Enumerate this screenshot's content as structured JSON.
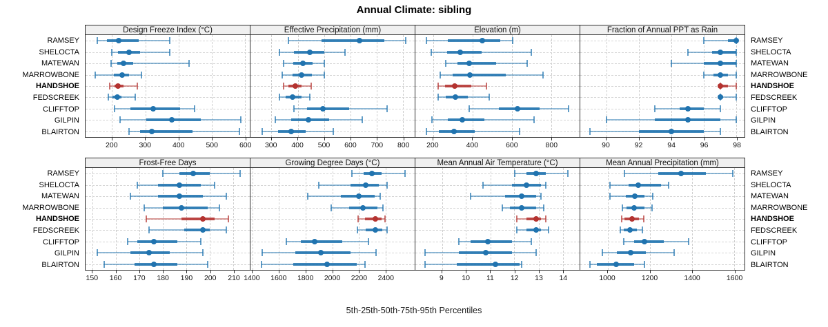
{
  "title": "Annual Climate: sibling",
  "footer": "5th-25th-50th-75th-95th Percentiles",
  "colors": {
    "series_blue": "#2073af",
    "highlight_red": "#b43330",
    "grid": "#cdcdcd",
    "strip_bg": "#f0f0f0",
    "border": "#2b2b2b"
  },
  "chart_data": {
    "type": "dot-interval percentile plot (lattice, 2x4 panels)",
    "percentile_labels": [
      "5th",
      "25th",
      "50th",
      "75th",
      "95th"
    ],
    "legend_note": "thin line = 5th-95th, thick bar = 25th-75th, dot = median",
    "rows": [
      "RAMSEY",
      "SHELOCTA",
      "MATEWAN",
      "MARROWBONE",
      "HANDSHOE",
      "FEDSCREEK",
      "CLIFFTOP",
      "GILPIN",
      "BLAIRTON"
    ],
    "highlight_row": "HANDSHOE",
    "panels": [
      {
        "title": "Design Freeze Index (°C)",
        "ticks": [
          200,
          300,
          400,
          500,
          600
        ],
        "xlim": [
          120,
          615
        ],
        "values": [
          [
            155,
            185,
            220,
            280,
            373
          ],
          [
            200,
            218,
            250,
            285,
            373
          ],
          [
            197,
            215,
            235,
            263,
            433
          ],
          [
            150,
            205,
            230,
            252,
            288
          ],
          [
            193,
            207,
            218,
            235,
            277
          ],
          [
            188,
            202,
            215,
            228,
            270
          ],
          [
            207,
            256,
            323,
            404,
            449
          ],
          [
            224,
            303,
            380,
            468,
            588
          ],
          [
            251,
            284,
            320,
            443,
            583
          ]
        ]
      },
      {
        "title": "Effective Precipitation (mm)",
        "ticks": [
          300,
          400,
          500,
          600,
          700,
          800
        ],
        "xlim": [
          220,
          845
        ],
        "values": [
          [
            365,
            490,
            635,
            730,
            810
          ],
          [
            330,
            385,
            445,
            500,
            580
          ],
          [
            345,
            382,
            420,
            456,
            502
          ],
          [
            340,
            380,
            415,
            455,
            500
          ],
          [
            345,
            365,
            390,
            415,
            450
          ],
          [
            330,
            355,
            380,
            415,
            445
          ],
          [
            385,
            435,
            495,
            595,
            740
          ],
          [
            315,
            375,
            440,
            520,
            645
          ],
          [
            265,
            325,
            375,
            430,
            535
          ]
        ]
      },
      {
        "title": "Elevation (m)",
        "ticks": [
          200,
          400,
          600,
          800
        ],
        "xlim": [
          110,
          945
        ],
        "values": [
          [
            165,
            275,
            450,
            540,
            605
          ],
          [
            190,
            272,
            338,
            448,
            700
          ],
          [
            265,
            325,
            385,
            520,
            680
          ],
          [
            235,
            300,
            387,
            570,
            760
          ],
          [
            225,
            260,
            310,
            395,
            470
          ],
          [
            225,
            265,
            315,
            375,
            485
          ],
          [
            385,
            535,
            630,
            740,
            890
          ],
          [
            195,
            275,
            350,
            460,
            715
          ],
          [
            165,
            230,
            305,
            410,
            640
          ]
        ]
      },
      {
        "title": "Fraction of Annual PPT as Rain",
        "ticks": [
          90,
          92,
          94,
          96,
          98
        ],
        "xlim": [
          88.4,
          98.5
        ],
        "values": [
          [
            96,
            97.5,
            98,
            98,
            98
          ],
          [
            95,
            96.5,
            97,
            98,
            98
          ],
          [
            94,
            96,
            97,
            98,
            98
          ],
          [
            96,
            96.6,
            97,
            97.5,
            98
          ],
          [
            97,
            97,
            97,
            97.5,
            98
          ],
          [
            97,
            97,
            97,
            97.2,
            98
          ],
          [
            93,
            94.5,
            95,
            96,
            97
          ],
          [
            90,
            93,
            95,
            97,
            98
          ],
          [
            89,
            92,
            94,
            96,
            97
          ]
        ]
      },
      {
        "title": "Frost-Free Days",
        "ticks": [
          150,
          160,
          170,
          180,
          190,
          200,
          210
        ],
        "xlim": [
          147,
          217
        ],
        "values": [
          [
            180,
            187,
            193,
            200,
            213
          ],
          [
            169,
            178,
            187,
            196,
            202
          ],
          [
            166,
            178,
            187,
            197,
            207
          ],
          [
            172,
            180,
            188,
            199,
            204
          ],
          [
            173,
            188,
            197,
            202,
            208
          ],
          [
            174,
            189,
            197,
            200,
            207
          ],
          [
            165,
            169,
            176,
            186,
            196
          ],
          [
            152,
            166,
            174,
            183,
            197
          ],
          [
            155,
            168,
            176,
            186,
            199
          ]
        ]
      },
      {
        "title": "Growing Degree Days (°C)",
        "ticks": [
          1400,
          1600,
          1800,
          2000,
          2200,
          2400
        ],
        "xlim": [
          1385,
          2620
        ],
        "values": [
          [
            2150,
            2235,
            2300,
            2370,
            2545
          ],
          [
            1900,
            2140,
            2250,
            2350,
            2410
          ],
          [
            1815,
            2065,
            2200,
            2320,
            2360
          ],
          [
            1990,
            2125,
            2230,
            2340,
            2380
          ],
          [
            2195,
            2245,
            2325,
            2370,
            2395
          ],
          [
            2190,
            2250,
            2325,
            2375,
            2410
          ],
          [
            1655,
            1765,
            1870,
            2075,
            2270
          ],
          [
            1475,
            1720,
            1915,
            2140,
            2330
          ],
          [
            1470,
            1705,
            1960,
            2185,
            2245
          ]
        ]
      },
      {
        "title": "Mean Annual Air Temperature (°C)",
        "ticks": [
          9,
          10,
          11,
          12,
          13,
          14
        ],
        "xlim": [
          7.9,
          14.7
        ],
        "values": [
          [
            12.0,
            12.5,
            12.9,
            13.3,
            14.2
          ],
          [
            10.7,
            11.9,
            12.5,
            13.1,
            13.3
          ],
          [
            10.2,
            11.6,
            12.3,
            12.9,
            13.1
          ],
          [
            11.5,
            11.8,
            12.3,
            12.9,
            13.2
          ],
          [
            12.1,
            12.5,
            12.9,
            13.1,
            13.3
          ],
          [
            12.1,
            12.5,
            12.9,
            13.1,
            13.4
          ],
          [
            9.7,
            10.2,
            10.9,
            11.9,
            12.7
          ],
          [
            8.3,
            9.7,
            10.8,
            11.9,
            12.9
          ],
          [
            8.3,
            9.6,
            11.2,
            12.2,
            12.3
          ]
        ]
      },
      {
        "title": "Mean Annual Precipitation (mm)",
        "ticks": [
          1000,
          1200,
          1400,
          1600
        ],
        "xlim": [
          870,
          1650
        ],
        "values": [
          [
            1080,
            1240,
            1350,
            1465,
            1595
          ],
          [
            1010,
            1100,
            1145,
            1255,
            1290
          ],
          [
            1010,
            1085,
            1130,
            1175,
            1215
          ],
          [
            1070,
            1090,
            1125,
            1175,
            1210
          ],
          [
            1065,
            1080,
            1115,
            1150,
            1170
          ],
          [
            1060,
            1075,
            1105,
            1140,
            1165
          ],
          [
            1075,
            1125,
            1175,
            1265,
            1385
          ],
          [
            975,
            1045,
            1110,
            1180,
            1315
          ],
          [
            915,
            950,
            1040,
            1125,
            1175
          ]
        ]
      }
    ]
  }
}
